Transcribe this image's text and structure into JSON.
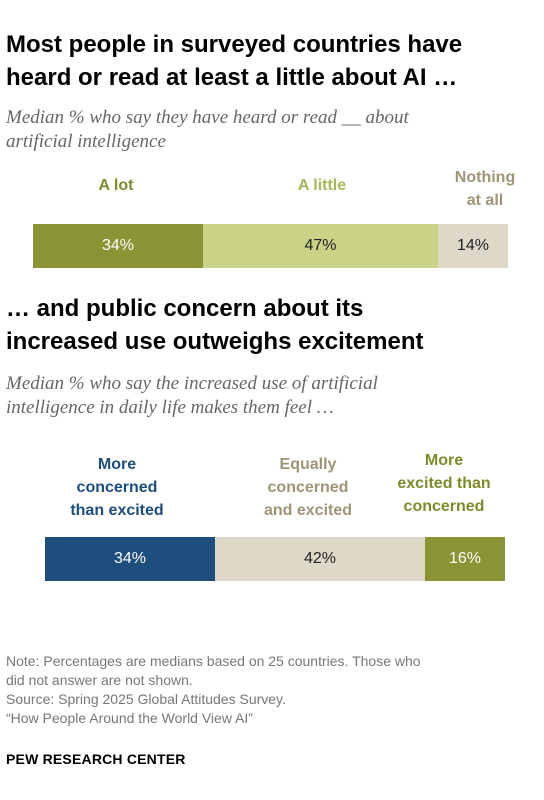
{
  "colors": {
    "a_lot": "#8A9434",
    "a_little": "#C9D285",
    "nothing": "#DDD8C8",
    "more_concerned": "#1D4E7D",
    "equally": "#DDD8C8",
    "more_excited": "#8A9434",
    "label_a_lot": "#7F8A2A",
    "label_a_little": "#A9B55A",
    "label_nothing": "#9E9476",
    "label_more_concerned": "#1D4E7D",
    "label_equally": "#9E9476",
    "label_more_excited": "#7F8A2A"
  },
  "chart_data": [
    {
      "type": "bar",
      "orientation": "horizontal-stacked",
      "title_lines": [
        "Most people in surveyed countries have",
        "heard or read at least a little about AI …"
      ],
      "subtitle_lines": [
        "Median % who say they have heard or read __ about",
        "artificial intelligence"
      ],
      "categories": [
        {
          "label_lines": [
            "A lot"
          ]
        },
        {
          "label_lines": [
            "A little"
          ]
        },
        {
          "label_lines": [
            "Nothing",
            "at all"
          ]
        }
      ],
      "values": [
        34,
        47,
        14
      ],
      "value_labels": [
        "34%",
        "47%",
        "14%"
      ]
    },
    {
      "type": "bar",
      "orientation": "horizontal-stacked",
      "title_lines": [
        "… and public concern about its",
        "increased use outweighs excitement"
      ],
      "subtitle_lines": [
        "Median % who say the increased use of artificial",
        "intelligence in daily life makes them feel …"
      ],
      "categories": [
        {
          "label_lines": [
            "More",
            "concerned",
            "than excited"
          ]
        },
        {
          "label_lines": [
            "Equally",
            "concerned",
            "and excited"
          ]
        },
        {
          "label_lines": [
            "More",
            "excited than",
            "concerned"
          ]
        }
      ],
      "values": [
        34,
        42,
        16
      ],
      "value_labels": [
        "34%",
        "42%",
        "16%"
      ]
    }
  ],
  "notes": {
    "note_lines": [
      "Note: Percentages are medians based on 25 countries. Those who",
      "did not answer are not shown."
    ],
    "source": "Source: Spring 2025 Global Attitudes Survey.",
    "report": "“How People Around the World View AI”",
    "brand": "PEW RESEARCH CENTER"
  }
}
